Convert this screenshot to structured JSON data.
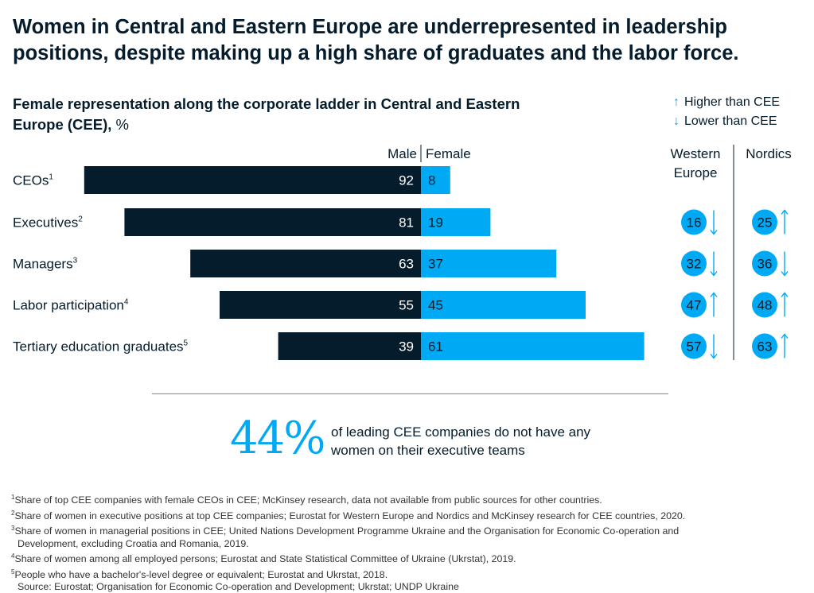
{
  "title": "Women in Central and Eastern Europe are underrepresented in leadership positions, despite making up a high share of graduates and the labor force.",
  "subtitle": "Female representation along the corporate ladder in Central and Eastern Europe (CEE),",
  "subtitle_unit": "%",
  "legend": {
    "higher": "Higher than CEE",
    "lower": "Lower than CEE",
    "higher_arrow": "↑",
    "lower_arrow": "↓"
  },
  "colors": {
    "male": "#051c2c",
    "female": "#00a9f4",
    "text": "#051c2c"
  },
  "chart_data": {
    "type": "bar",
    "orientation": "horizontal-diverging",
    "categories": [
      {
        "label": "CEOs",
        "sup": "1"
      },
      {
        "label": "Executives",
        "sup": "2"
      },
      {
        "label": "Managers",
        "sup": "3"
      },
      {
        "label": "Labor participation",
        "sup": "4"
      },
      {
        "label": "Tertiary education graduates",
        "sup": "5"
      }
    ],
    "series": [
      {
        "name": "Male",
        "values": [
          92,
          81,
          63,
          55,
          39
        ]
      },
      {
        "name": "Female",
        "values": [
          8,
          19,
          37,
          45,
          61
        ]
      }
    ],
    "comparison": {
      "columns": [
        "Western Europe",
        "Nordics"
      ],
      "western_europe": [
        null,
        16,
        32,
        47,
        57
      ],
      "western_europe_trend": [
        null,
        "down",
        "down",
        "up",
        "down"
      ],
      "nordics": [
        null,
        25,
        36,
        48,
        63
      ],
      "nordics_trend": [
        null,
        "up",
        "down",
        "up",
        "up"
      ]
    }
  },
  "callout": {
    "number": "44%",
    "text": "of leading CEE companies do not have any women on their executive teams"
  },
  "footnotes": [
    {
      "sup": "1",
      "text": "Share of top CEE companies with female CEOs in CEE; McKinsey research, data not available from public sources for other countries."
    },
    {
      "sup": "2",
      "text": "Share of women in executive positions at top CEE companies; Eurostat for Western Europe and Nordics and McKinsey research for CEE countries, 2020."
    },
    {
      "sup": "3",
      "text": "Share of women in managerial positions in CEE; United Nations Development Programme Ukraine and the Organisation for Economic Co-operation and"
    },
    {
      "sup": "",
      "text": "Development, excluding Croatia and Romania, 2019."
    },
    {
      "sup": "4",
      "text": "Share of women among all employed persons; Eurostat and State Statistical Committee of Ukraine (Ukrstat), 2019."
    },
    {
      "sup": "5",
      "text": "People who have a bachelor's-level degree or equivalent; Eurostat and Ukrstat, 2018."
    },
    {
      "sup": "",
      "text": "Source: Eurostat; Organisation for Economic Co-operation and Development; Ukrstat; UNDP Ukraine"
    }
  ]
}
